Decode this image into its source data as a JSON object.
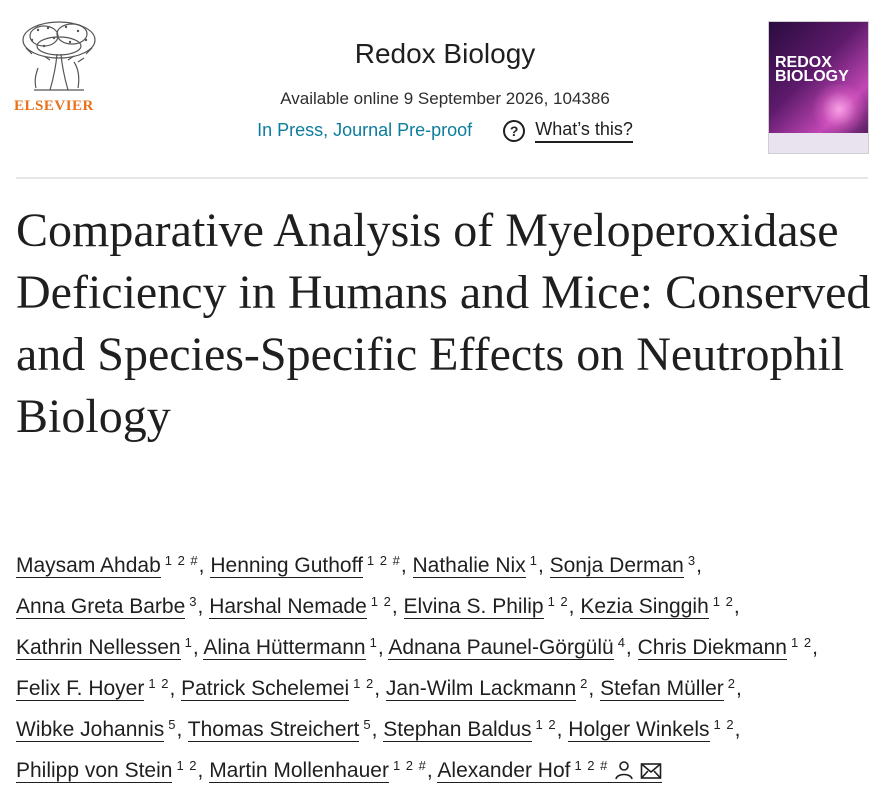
{
  "header": {
    "publisher": "ELSEVIER",
    "journal": "Redox Biology",
    "availability": "Available online 9 September 2026, 104386",
    "status": "In Press, Journal Pre-proof",
    "help_label": "What’s this?",
    "cover_title": "REDOX BIOLOGY"
  },
  "article": {
    "title": "Comparative Analysis of Myeloperoxidase Deficiency in Humans and Mice: Conserved and Species-Specific Effects on Neutrophil Biology"
  },
  "authors": [
    {
      "name": "Maysam Ahdab",
      "sup": "1 2 #"
    },
    {
      "name": "Henning Guthoff",
      "sup": "1 2 #"
    },
    {
      "name": "Nathalie Nix",
      "sup": "1"
    },
    {
      "name": "Sonja Derman",
      "sup": "3"
    },
    {
      "name": "Anna Greta Barbe",
      "sup": "3"
    },
    {
      "name": "Harshal Nemade",
      "sup": "1 2"
    },
    {
      "name": "Elvina S. Philip",
      "sup": "1 2"
    },
    {
      "name": "Kezia Singgih",
      "sup": "1 2"
    },
    {
      "name": "Kathrin Nellessen",
      "sup": "1"
    },
    {
      "name": "Alina Hüttermann",
      "sup": "1"
    },
    {
      "name": "Adnana Paunel-Görgülü",
      "sup": "4"
    },
    {
      "name": "Chris Diekmann",
      "sup": "1 2"
    },
    {
      "name": "Felix F. Hoyer",
      "sup": "1 2"
    },
    {
      "name": "Patrick Schelemei",
      "sup": "1 2"
    },
    {
      "name": "Jan-Wilm Lackmann",
      "sup": "2"
    },
    {
      "name": "Stefan Müller",
      "sup": "2"
    },
    {
      "name": "Wibke Johannis",
      "sup": "5"
    },
    {
      "name": "Thomas Streichert",
      "sup": "5"
    },
    {
      "name": "Stephan Baldus",
      "sup": "1 2"
    },
    {
      "name": "Holger Winkels",
      "sup": "1 2"
    },
    {
      "name": "Philipp von Stein",
      "sup": "1 2"
    },
    {
      "name": "Martin Mollenhauer",
      "sup": "1 2 #"
    },
    {
      "name": "Alexander Hof",
      "sup": "1 2 #"
    }
  ]
}
